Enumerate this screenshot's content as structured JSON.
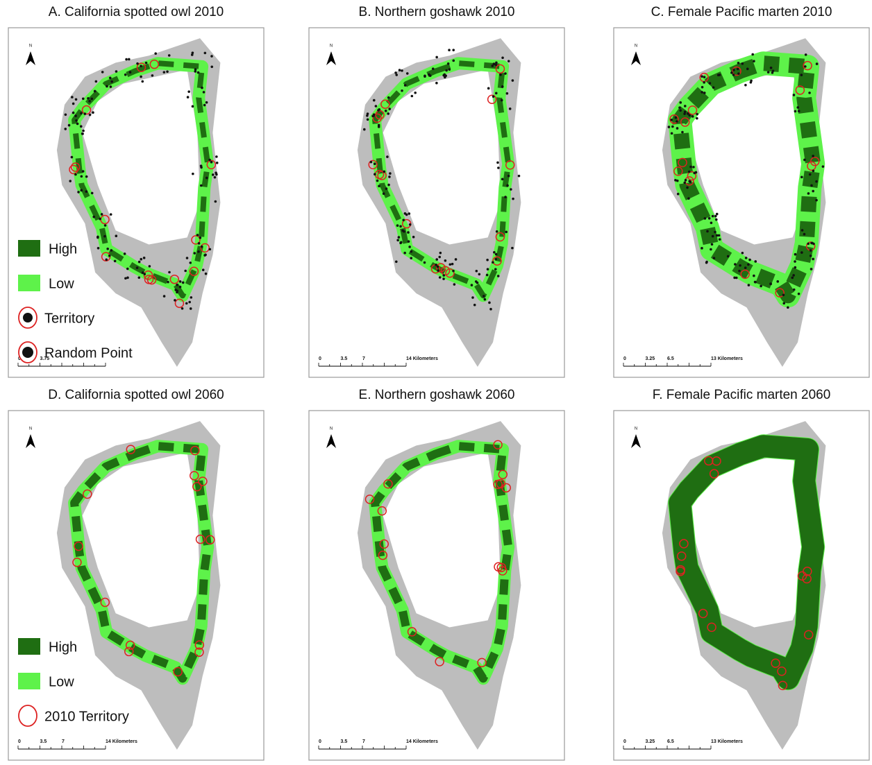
{
  "panels": [
    {
      "title": "A. California spotted owl 2010",
      "north": "N",
      "legend": [
        "High",
        "Low",
        "Territory",
        "Random Point"
      ],
      "scale": [
        "0",
        "3.75"
      ]
    },
    {
      "title": "B. Northern goshawk 2010",
      "north": "N",
      "scale": [
        "0",
        "3.5",
        "7",
        "14 Kilometers"
      ]
    },
    {
      "title": "C.  Female Pacific marten 2010",
      "north": "N",
      "scale": [
        "0",
        "3.25",
        "6.5",
        "13 Kilometers"
      ]
    },
    {
      "title": "D. California spotted owl 2060",
      "north": "N",
      "legend": [
        "High",
        "Low",
        "2010 Territory"
      ],
      "scale": [
        "0",
        "3.5",
        "7",
        "14 Kilometers"
      ]
    },
    {
      "title": "E. Northern goshawk 2060",
      "north": "N",
      "scale": [
        "0",
        "3.5",
        "7",
        "14 Kilometers"
      ]
    },
    {
      "title": "F.  Female Pacific marten 2060",
      "north": "N",
      "scale": [
        "0",
        "3.25",
        "6.5",
        "13 Kilometers"
      ]
    }
  ]
}
